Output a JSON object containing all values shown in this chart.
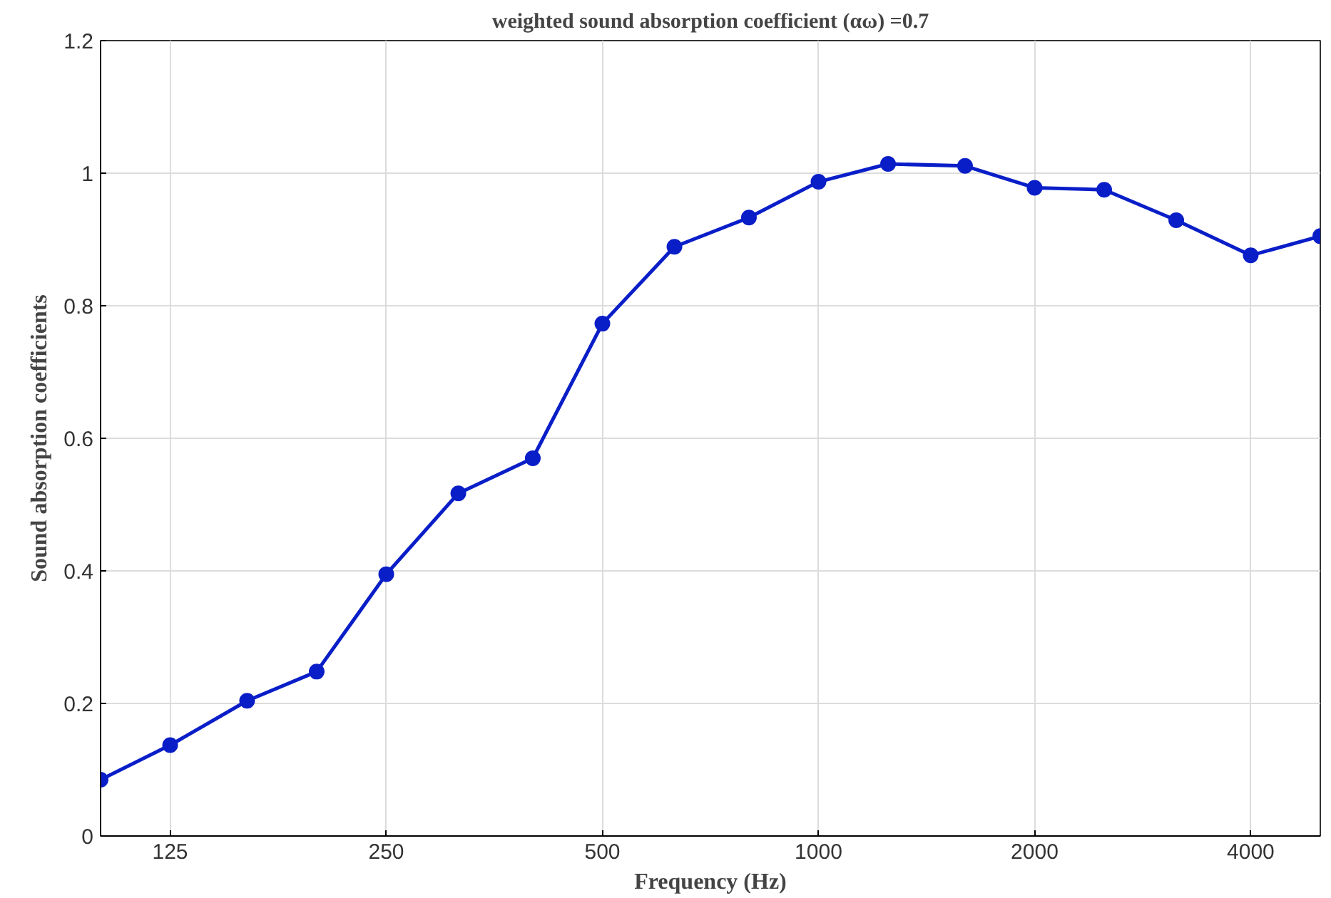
{
  "chart_data": {
    "type": "line",
    "title": "weighted sound absorption coefficient (αω) =0.7",
    "xlabel": "Frequency (Hz)",
    "ylabel": "Sound absorption coefficients",
    "x": [
      100,
      125,
      160,
      200,
      250,
      315,
      400,
      500,
      630,
      800,
      1000,
      1250,
      1600,
      2000,
      2500,
      3150,
      4000,
      5000
    ],
    "series": [
      {
        "color": "#0a1ec8",
        "values": [
          0.085,
          0.137,
          0.204,
          0.248,
          0.395,
          0.517,
          0.57,
          0.773,
          0.889,
          0.933,
          0.987,
          1.014,
          1.011,
          0.978,
          0.975,
          0.929,
          0.876,
          0.905
        ]
      }
    ],
    "log": "x",
    "xlim": [
      100,
      5000
    ],
    "xticks": [
      125,
      250,
      500,
      1000,
      2000,
      4000
    ],
    "ylim": [
      0,
      1.2
    ],
    "yticks": [
      0,
      0.2,
      0.4,
      0.6,
      0.8,
      1,
      1.2
    ],
    "grid": true,
    "marker": "circle",
    "line_style": "solid"
  }
}
